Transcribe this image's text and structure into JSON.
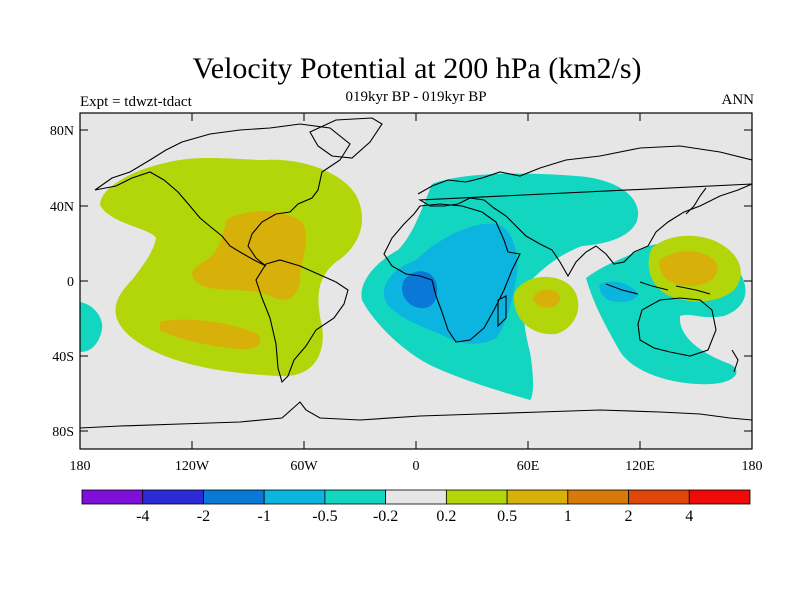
{
  "title": "Velocity Potential at 200 hPa (km2/s)",
  "left_string": "Expt = tdwzt-tdact",
  "center_string": "019kyr BP - 019kyr BP",
  "right_string": "ANN",
  "axes": {
    "lat_ticks": [
      "80N",
      "40N",
      "0",
      "40S",
      "80S"
    ],
    "lon_ticks": [
      "180",
      "120W",
      "60W",
      "0",
      "60E",
      "120E",
      "180"
    ]
  },
  "colors": {
    "background": "#e6e6e6",
    "levels": [
      "#7e0fd8",
      "#2a2ad6",
      "#0a78d6",
      "#0cb4e0",
      "#12d6c0",
      "#e6e6e6",
      "#b2d60a",
      "#d8b00a",
      "#d87a0a",
      "#e0460a",
      "#f00a0a"
    ]
  },
  "labelbar": {
    "labels": [
      "-4",
      "-2",
      "-1",
      "-0.5",
      "-0.2",
      "0.2",
      "0.5",
      "1",
      "2",
      "4"
    ]
  }
}
